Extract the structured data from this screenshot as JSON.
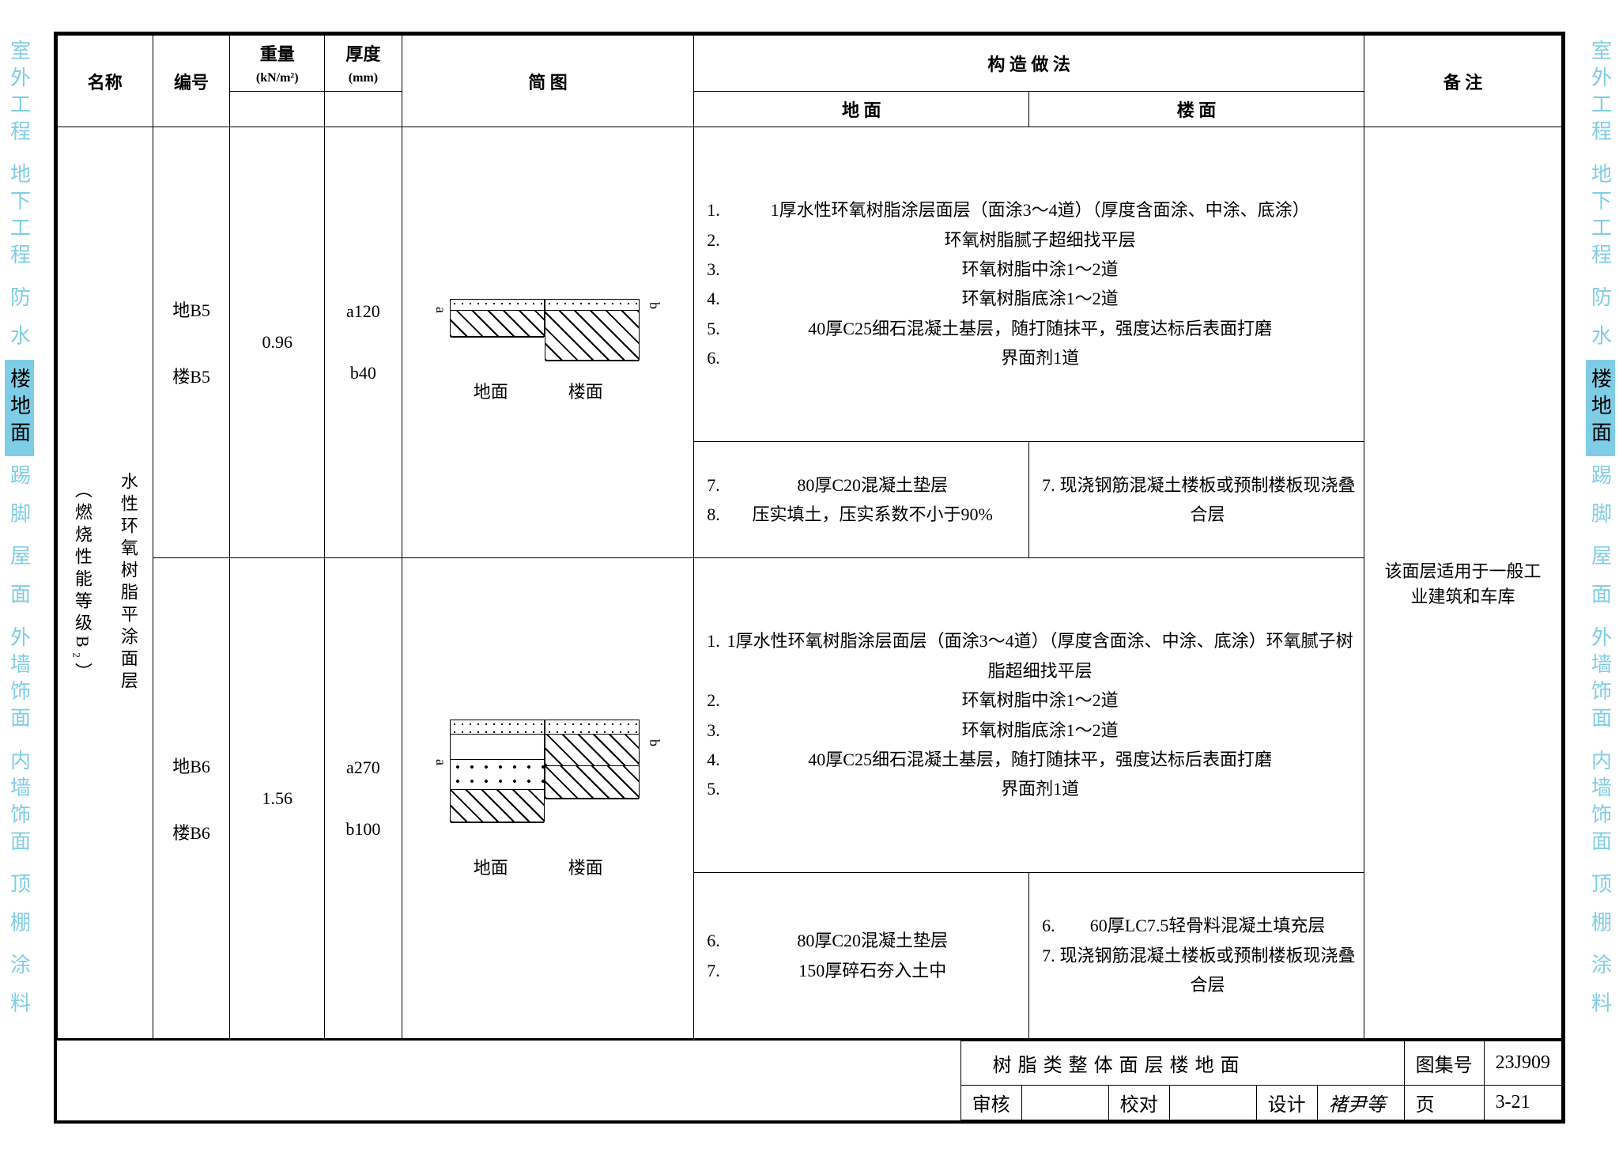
{
  "sideTabs": [
    {
      "label": "室外工程",
      "active": false
    },
    {
      "label": "地下工程",
      "active": false
    },
    {
      "label": "防 水",
      "active": false
    },
    {
      "label": "楼地面",
      "active": true
    },
    {
      "label": "踢 脚",
      "active": false
    },
    {
      "label": "屋 面",
      "active": false
    },
    {
      "label": "外墙饰面",
      "active": false
    },
    {
      "label": "内墙饰面",
      "active": false
    },
    {
      "label": "顶 棚",
      "active": false
    },
    {
      "label": "涂 料",
      "active": false
    }
  ],
  "header": {
    "col_name": "名称",
    "col_code": "编号",
    "col_weight": "重量",
    "col_weight_unit": "(kN/m²)",
    "col_thick": "厚度",
    "col_thick_unit": "(mm)",
    "col_sketch": "简 图",
    "col_method": "构 造 做 法",
    "col_method_ground": "地 面",
    "col_method_floor": "楼 面",
    "col_remark": "备 注"
  },
  "row_name": "水性环氧树脂平涂面层",
  "row_note": "（燃烧性能等级B₂）",
  "row1": {
    "code_ground": "地B5",
    "code_floor": "楼B5",
    "weight": "0.96",
    "thick_a": "a120",
    "thick_b": "b40",
    "sketch_label_ground": "地面",
    "sketch_label_floor": "楼面",
    "dim_a": "a",
    "dim_b": "b",
    "method_top": [
      "1厚水性环氧树脂涂层面层（面涂3～4道）（厚度含面涂、中涂、底涂）",
      "环氧树脂腻子超细找平层",
      "环氧树脂中涂1～2道",
      "环氧树脂底涂1～2道",
      "40厚C25细石混凝土基层，随打随抹平，强度达标后表面打磨",
      "界面剂1道"
    ],
    "method_g": [
      "80厚C20混凝土垫层",
      "压实填土，压实系数不小于90%"
    ],
    "method_f": [
      "现浇钢筋混凝土楼板或预制楼板现浇叠合层"
    ],
    "method_g_start": 7,
    "method_f_start": 7
  },
  "row2": {
    "code_ground": "地B6",
    "code_floor": "楼B6",
    "weight": "1.56",
    "thick_a": "a270",
    "thick_b": "b100",
    "sketch_label_ground": "地面",
    "sketch_label_floor": "楼面",
    "dim_a": "a",
    "dim_b": "b",
    "method_top": [
      "1厚水性环氧树脂涂层面层（面涂3～4道）（厚度含面涂、中涂、底涂）环氧腻子树脂超细找平层",
      "环氧树脂中涂1～2道",
      "环氧树脂底涂1～2道",
      "40厚C25细石混凝土基层，随打随抹平，强度达标后表面打磨",
      "界面剂1道"
    ],
    "method_g": [
      "80厚C20混凝土垫层",
      "150厚碎石夯入土中"
    ],
    "method_f": [
      "60厚LC7.5轻骨料混凝土填充层",
      "现浇钢筋混凝土楼板或预制楼板现浇叠合层"
    ],
    "method_g_start": 6,
    "method_f_start": 6
  },
  "remark": "该面层适用于一般工业建筑和车库",
  "titleBlock": {
    "title": "树脂类整体面层楼地面",
    "setNoLabel": "图集号",
    "setNo": "23J909",
    "reviewLabel": "审核",
    "review": "",
    "proofLabel": "校对",
    "proof": "",
    "designLabel": "设计",
    "design": "褚尹等",
    "pageLabel": "页",
    "page": "3-21"
  },
  "colors": {
    "tabBlue": "#7fcde5",
    "tabInactive": "#7fcde5",
    "border": "#000000",
    "background": "#ffffff"
  }
}
